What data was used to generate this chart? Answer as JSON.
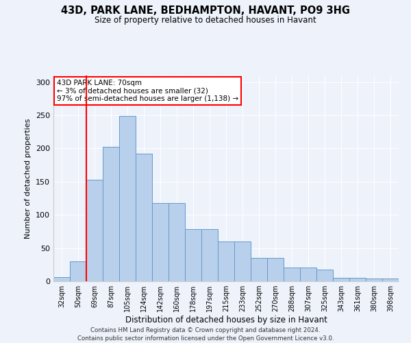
{
  "title1": "43D, PARK LANE, BEDHAMPTON, HAVANT, PO9 3HG",
  "title2": "Size of property relative to detached houses in Havant",
  "xlabel": "Distribution of detached houses by size in Havant",
  "ylabel": "Number of detached properties",
  "categories": [
    "32sqm",
    "50sqm",
    "69sqm",
    "87sqm",
    "105sqm",
    "124sqm",
    "142sqm",
    "160sqm",
    "178sqm",
    "197sqm",
    "215sqm",
    "233sqm",
    "252sqm",
    "270sqm",
    "288sqm",
    "307sqm",
    "325sqm",
    "343sqm",
    "361sqm",
    "380sqm",
    "398sqm"
  ],
  "values": [
    6,
    30,
    153,
    203,
    249,
    192,
    118,
    118,
    79,
    79,
    60,
    60,
    35,
    35,
    21,
    21,
    18,
    5,
    5,
    4,
    4
  ],
  "bar_color": "#b8d0eb",
  "bar_edge_color": "#6699cc",
  "vline_index": 2,
  "vline_color": "red",
  "annotation_text": "43D PARK LANE: 70sqm\n← 3% of detached houses are smaller (32)\n97% of semi-detached houses are larger (1,138) →",
  "annotation_box_color": "white",
  "annotation_box_edge_color": "red",
  "ylim": [
    0,
    310
  ],
  "yticks": [
    0,
    50,
    100,
    150,
    200,
    250,
    300
  ],
  "footnote": "Contains HM Land Registry data © Crown copyright and database right 2024.\nContains public sector information licensed under the Open Government Licence v3.0.",
  "background_color": "#edf2fb"
}
